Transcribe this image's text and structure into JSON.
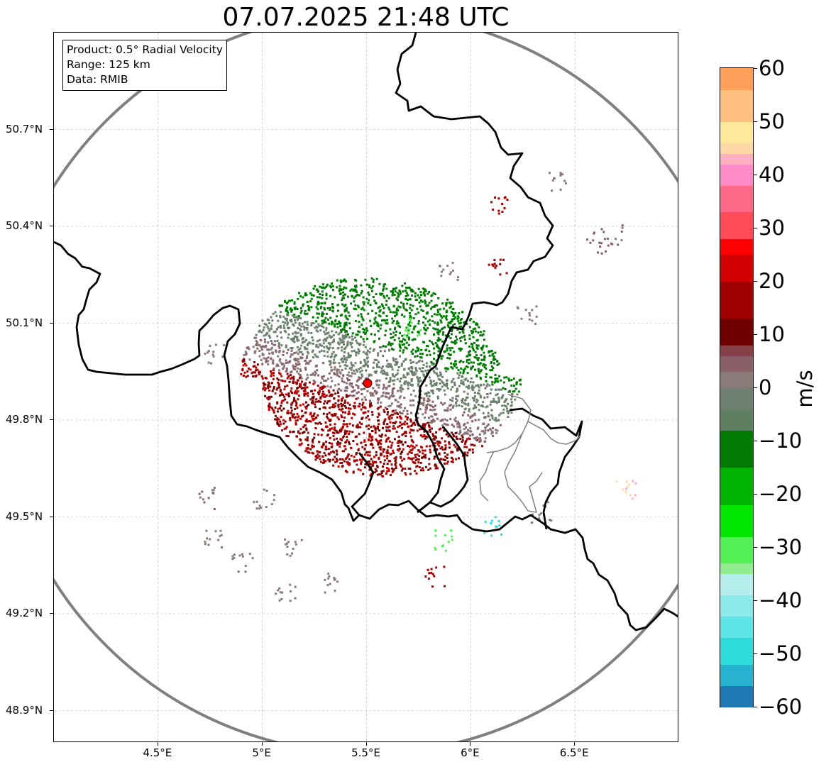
{
  "title": "07.07.2025 21:48 UTC",
  "info_box": {
    "product": "Product: 0.5° Radial Velocity",
    "range": "Range: 125 km",
    "data": "Data: RMIB"
  },
  "map": {
    "type": "radar-velocity-map",
    "radar_site": {
      "lon": 5.505,
      "lat": 49.914
    },
    "extent": {
      "lon": [
        4.0,
        7.0
      ],
      "lat": [
        48.8,
        51.0
      ]
    },
    "lat_ticks": [
      {
        "value": 50.7,
        "label": "50.7°N"
      },
      {
        "value": 50.4,
        "label": "50.4°N"
      },
      {
        "value": 50.1,
        "label": "50.1°N"
      },
      {
        "value": 49.8,
        "label": "49.8°N"
      },
      {
        "value": 49.5,
        "label": "49.5°N"
      },
      {
        "value": 49.2,
        "label": "49.2°N"
      },
      {
        "value": 48.9,
        "label": "48.9°N"
      }
    ],
    "lon_ticks": [
      {
        "value": 4.5,
        "label": "4.5°E"
      },
      {
        "value": 5.0,
        "label": "5°E"
      },
      {
        "value": 5.5,
        "label": "5.5°E"
      },
      {
        "value": 6.0,
        "label": "6°E"
      },
      {
        "value": 6.5,
        "label": "6.5°E"
      }
    ],
    "range_ring_color": "#808080",
    "border_color": "#000000",
    "grid": true
  },
  "colorbar": {
    "unit": "m/s",
    "min": -60,
    "max": 60,
    "ticks": [
      {
        "value": 60,
        "label": "60"
      },
      {
        "value": 50,
        "label": "50"
      },
      {
        "value": 40,
        "label": "40"
      },
      {
        "value": 30,
        "label": "30"
      },
      {
        "value": 20,
        "label": "20"
      },
      {
        "value": 10,
        "label": "10"
      },
      {
        "value": 0,
        "label": "0"
      },
      {
        "value": -10,
        "label": "−10"
      },
      {
        "value": -20,
        "label": "−20"
      },
      {
        "value": -30,
        "label": "−30"
      },
      {
        "value": -40,
        "label": "−40"
      },
      {
        "value": -50,
        "label": "−50"
      },
      {
        "value": -60,
        "label": "−60"
      }
    ],
    "colors": [
      {
        "from": -60,
        "to": -56,
        "color": "#1f77b4"
      },
      {
        "from": -56,
        "to": -52,
        "color": "#27b2cf"
      },
      {
        "from": -52,
        "to": -47,
        "color": "#2fdcdc"
      },
      {
        "from": -47,
        "to": -43,
        "color": "#5ee6e6"
      },
      {
        "from": -43,
        "to": -39,
        "color": "#8deaea"
      },
      {
        "from": -39,
        "to": -35,
        "color": "#b6eeee"
      },
      {
        "from": -35,
        "to": -33,
        "color": "#90ee90"
      },
      {
        "from": -33,
        "to": -28,
        "color": "#55f055"
      },
      {
        "from": -28,
        "to": -22,
        "color": "#00e600"
      },
      {
        "from": -22,
        "to": -15,
        "color": "#00b300"
      },
      {
        "from": -15,
        "to": -8,
        "color": "#007a00"
      },
      {
        "from": -8,
        "to": -4,
        "color": "#5f8060"
      },
      {
        "from": -4,
        "to": 0,
        "color": "#708070"
      },
      {
        "from": 0,
        "to": 3,
        "color": "#8a7a7a"
      },
      {
        "from": 3,
        "to": 6,
        "color": "#8a6068"
      },
      {
        "from": 6,
        "to": 8,
        "color": "#884048"
      },
      {
        "from": 8,
        "to": 13,
        "color": "#6e0000"
      },
      {
        "from": 13,
        "to": 20,
        "color": "#a00000"
      },
      {
        "from": 20,
        "to": 25,
        "color": "#d00000"
      },
      {
        "from": 25,
        "to": 28,
        "color": "#ff0000"
      },
      {
        "from": 28,
        "to": 33,
        "color": "#ff4a5a"
      },
      {
        "from": 33,
        "to": 38,
        "color": "#ff6a88"
      },
      {
        "from": 38,
        "to": 42,
        "color": "#ff8cc8"
      },
      {
        "from": 42,
        "to": 44,
        "color": "#ffb0c0"
      },
      {
        "from": 44,
        "to": 46,
        "color": "#ffd8a8"
      },
      {
        "from": 46,
        "to": 50,
        "color": "#ffe89a"
      },
      {
        "from": 50,
        "to": 56,
        "color": "#ffc080"
      },
      {
        "from": 56,
        "to": 60,
        "color": "#ff9f5a"
      }
    ]
  }
}
